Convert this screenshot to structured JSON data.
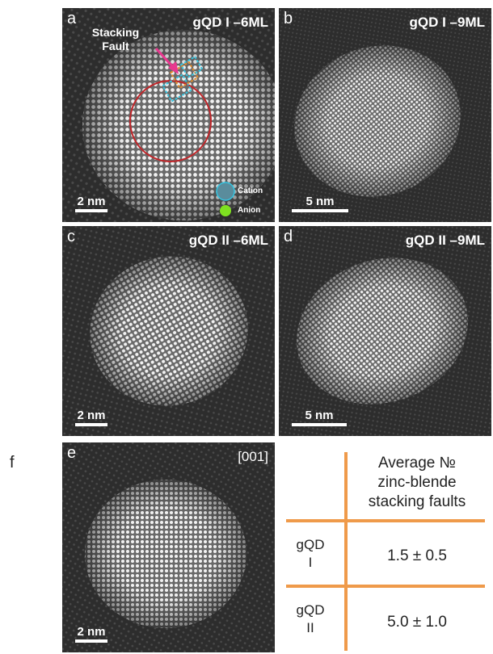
{
  "figure_label": "f",
  "panels": [
    {
      "label": "a",
      "title": "gQD I –6ML",
      "scale_bar": "2 nm"
    },
    {
      "label": "b",
      "title": "gQD I –9ML",
      "scale_bar": "5 nm"
    },
    {
      "label": "c",
      "title": "gQD II –6ML",
      "scale_bar": "2 nm"
    },
    {
      "label": "d",
      "title": "gQD II –9ML",
      "scale_bar": "5 nm"
    },
    {
      "label": "e",
      "title": "[001]",
      "scale_bar": "2 nm"
    }
  ],
  "annotations": {
    "stacking_fault": "Stacking Fault",
    "cation": "Cation",
    "anion": "Anion"
  },
  "table": {
    "header": [
      "Average №",
      "zinc-blende",
      "stacking faults"
    ],
    "rows": [
      [
        "gQD I",
        "1.5 ± 0.5"
      ],
      [
        "gQD II",
        "5.0 ± 1.0"
      ]
    ]
  }
}
